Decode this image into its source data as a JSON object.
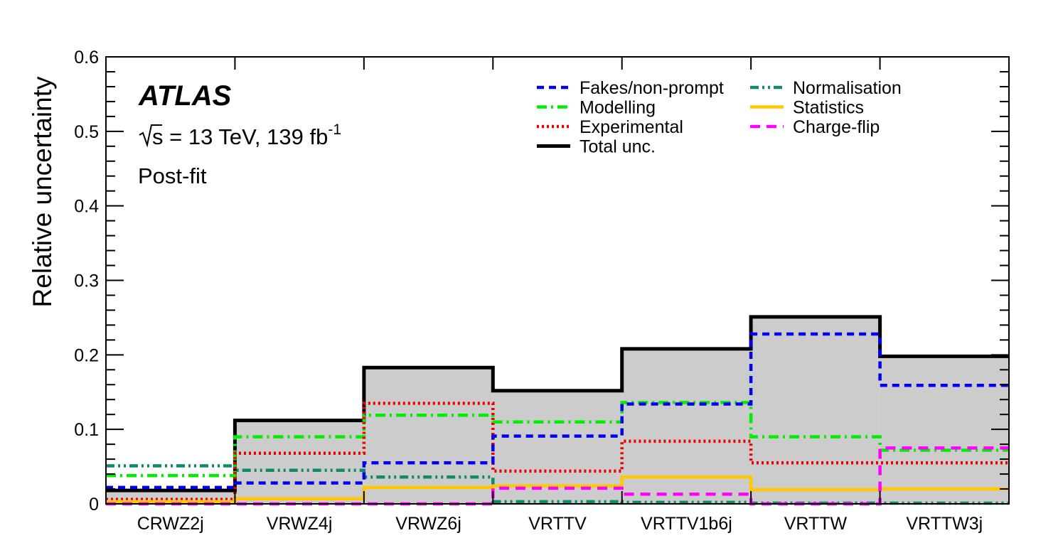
{
  "chart_data": {
    "type": "step",
    "ylabel": "Relative uncertainty",
    "ylim": [
      0,
      0.6
    ],
    "y_ticks": [
      "0",
      "0.1",
      "0.2",
      "0.3",
      "0.4",
      "0.5",
      "0.6"
    ],
    "y_tick_values": [
      0,
      0.1,
      0.2,
      0.3,
      0.4,
      0.5,
      0.6
    ],
    "categories": [
      "CRWZ2j",
      "VRWZ4j",
      "VRWZ6j",
      "VRTTV",
      "VRTTV1b6j",
      "VRTTW",
      "VRTTW3j"
    ],
    "annotations": {
      "experiment": "ATLAS",
      "sqrt_s": "s",
      "energy_lumi": " = 13 TeV, 139 fb",
      "lumi_exponent": "-1",
      "fit_state": "Post-fit"
    },
    "series": [
      {
        "name": "Total unc.",
        "color": "#000000",
        "style": "solid",
        "values": [
          0.018,
          0.112,
          0.183,
          0.152,
          0.208,
          0.251,
          0.198
        ]
      },
      {
        "name": "Fakes/non-prompt",
        "color": "#0000ee",
        "style": "dash",
        "values": [
          0.022,
          0.028,
          0.055,
          0.091,
          0.134,
          0.228,
          0.159
        ]
      },
      {
        "name": "Modelling",
        "color": "#00ee00",
        "style": "dashdot",
        "values": [
          0.038,
          0.09,
          0.119,
          0.11,
          0.136,
          0.09,
          0.072
        ]
      },
      {
        "name": "Experimental",
        "color": "#ee0000",
        "style": "dot",
        "values": [
          0.006,
          0.068,
          0.135,
          0.044,
          0.084,
          0.055,
          0.055
        ]
      },
      {
        "name": "Normalisation",
        "color": "#0f8a6a",
        "style": "dashdotdot",
        "values": [
          0.051,
          0.045,
          0.036,
          0.003,
          0.002,
          0.001,
          0.001
        ]
      },
      {
        "name": "Statistics",
        "color": "#ffc800",
        "style": "solid",
        "values": [
          0.003,
          0.007,
          0.022,
          0.024,
          0.036,
          0.019,
          0.02
        ]
      },
      {
        "name": "Charge-flip",
        "color": "#ff00ff",
        "style": "longdash",
        "values": [
          0.0,
          0.0,
          0.0,
          0.021,
          0.013,
          0.0,
          0.075
        ]
      }
    ],
    "legend": [
      {
        "series": "Fakes/non-prompt",
        "column": 0
      },
      {
        "series": "Modelling",
        "column": 0
      },
      {
        "series": "Experimental",
        "column": 0
      },
      {
        "series": "Total unc.",
        "column": 0
      },
      {
        "series": "Normalisation",
        "column": 1
      },
      {
        "series": "Statistics",
        "column": 1
      },
      {
        "series": "Charge-flip",
        "column": 1
      }
    ],
    "fill_series": "Total unc.",
    "fill_color": "#cccccc"
  }
}
